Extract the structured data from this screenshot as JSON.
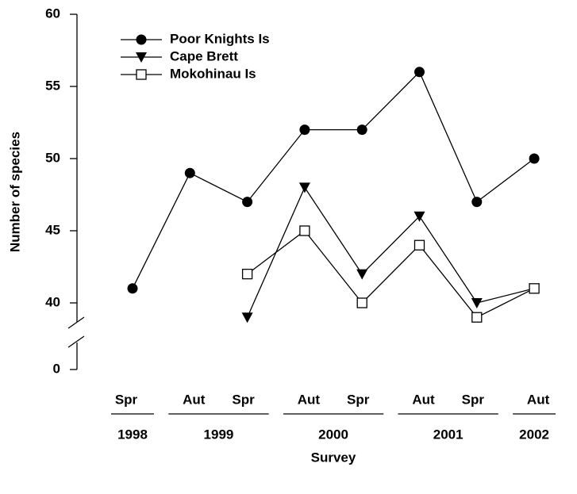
{
  "chart_data": {
    "type": "line",
    "ylabel": "Number of species",
    "xlabel": "Survey",
    "categories": [
      "Spr",
      "Aut",
      "Spr",
      "Aut",
      "Spr",
      "Aut",
      "Spr",
      "Aut"
    ],
    "category_groups": [
      {
        "label": "1998",
        "span": 1
      },
      {
        "label": "1999",
        "span": 2
      },
      {
        "label": "2000",
        "span": 2
      },
      {
        "label": "2001",
        "span": 2
      },
      {
        "label": "2002",
        "span": 1
      }
    ],
    "series": [
      {
        "name": "Poor Knights Is",
        "marker": "circle",
        "color": "#000000",
        "values": [
          41,
          49,
          47,
          52,
          52,
          56,
          47,
          50
        ]
      },
      {
        "name": "Cape Brett",
        "marker": "triangle-down",
        "color": "#000000",
        "values": [
          null,
          null,
          39,
          48,
          42,
          46,
          40,
          41
        ]
      },
      {
        "name": "Mokohinau Is",
        "marker": "square-open",
        "color": "#000000",
        "values": [
          null,
          null,
          42,
          45,
          40,
          44,
          39,
          41
        ]
      }
    ],
    "ylim": [
      0,
      60
    ],
    "ybreak": [
      0,
      38
    ],
    "yticks": [
      0,
      40,
      45,
      50,
      55,
      60
    ],
    "legend": "upper left"
  }
}
